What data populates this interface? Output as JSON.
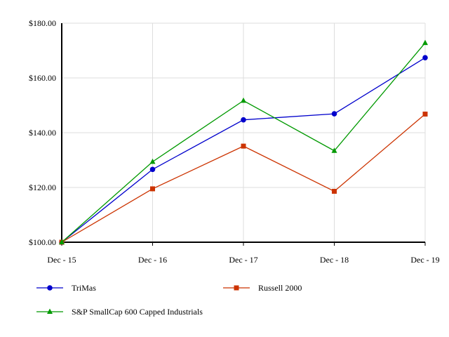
{
  "chart_data": {
    "type": "line",
    "categories": [
      "Dec - 15",
      "Dec - 16",
      "Dec - 17",
      "Dec - 18",
      "Dec - 19"
    ],
    "ylim": [
      100,
      180
    ],
    "yticks": [
      100,
      120,
      140,
      160,
      180
    ],
    "ytick_labels": [
      "$100.00",
      "$120.00",
      "$140.00",
      "$160.00",
      "$180.00"
    ],
    "grid": true,
    "legend": "bottom",
    "series": [
      {
        "name": "TriMas",
        "color": "#0000cc",
        "marker": "circle",
        "values": [
          100,
          126.6,
          144.7,
          146.9,
          167.4
        ]
      },
      {
        "name": "Russell 2000",
        "color": "#cc3300",
        "marker": "square",
        "values": [
          100,
          119.5,
          135.1,
          118.6,
          146.8
        ]
      },
      {
        "name": "S&P SmallCap 600 Capped Industrials",
        "color": "#009900",
        "marker": "triangle",
        "values": [
          100,
          129.4,
          151.7,
          133.4,
          172.8
        ]
      }
    ]
  }
}
